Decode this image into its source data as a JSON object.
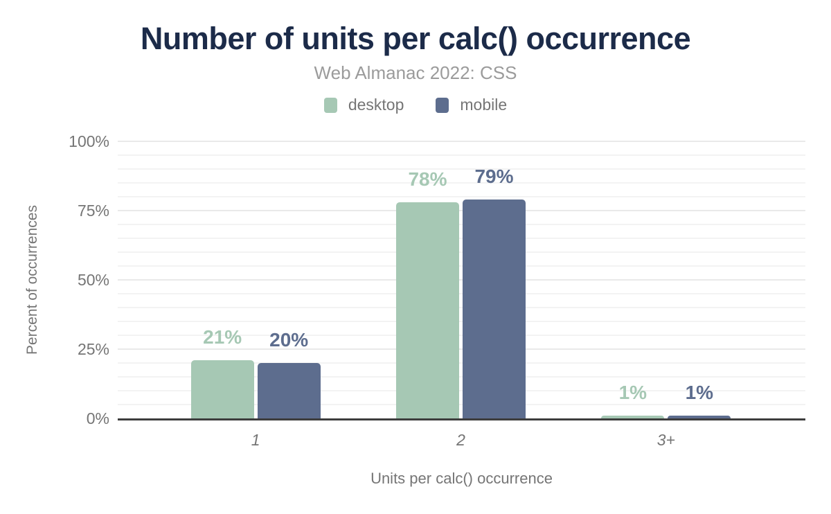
{
  "header": {
    "title": "Number of units per calc() occurrence",
    "subtitle": "Web Almanac 2022: CSS"
  },
  "legend": {
    "items": [
      {
        "label": "desktop",
        "color": "#a6c8b4"
      },
      {
        "label": "mobile",
        "color": "#5d6d8e"
      }
    ]
  },
  "axes": {
    "y_title": "Percent of occurrences",
    "x_title": "Units per calc() occurrence"
  },
  "chart_data": {
    "type": "bar",
    "title": "Number of units per calc() occurrence",
    "subtitle": "Web Almanac 2022: CSS",
    "categories": [
      "1",
      "2",
      "3+"
    ],
    "series": [
      {
        "name": "desktop",
        "color": "#a6c8b4",
        "values": [
          21,
          78,
          1
        ],
        "value_labels": [
          "21%",
          "78%",
          "1%"
        ]
      },
      {
        "name": "mobile",
        "color": "#5d6d8e",
        "values": [
          20,
          79,
          1
        ],
        "value_labels": [
          "20%",
          "79%",
          "1%"
        ]
      }
    ],
    "xlabel": "Units per calc() occurrence",
    "ylabel": "Percent of occurrences",
    "ylim": [
      0,
      100
    ],
    "yticks": [
      {
        "value": 0,
        "label": "0%"
      },
      {
        "value": 25,
        "label": "25%"
      },
      {
        "value": 50,
        "label": "50%"
      },
      {
        "value": 75,
        "label": "75%"
      },
      {
        "value": 100,
        "label": "100%"
      }
    ],
    "grid": {
      "horizontal": true,
      "minor_step": 5,
      "major_step": 25
    },
    "legend_position": "top",
    "colors": {
      "title": "#1c2b49",
      "subtitle": "#9b9b9b",
      "tick_text": "#757575",
      "axis_line": "#3d3d3d",
      "gridline_minor": "#f3f3f3",
      "gridline_major": "#e9e9e9"
    }
  }
}
